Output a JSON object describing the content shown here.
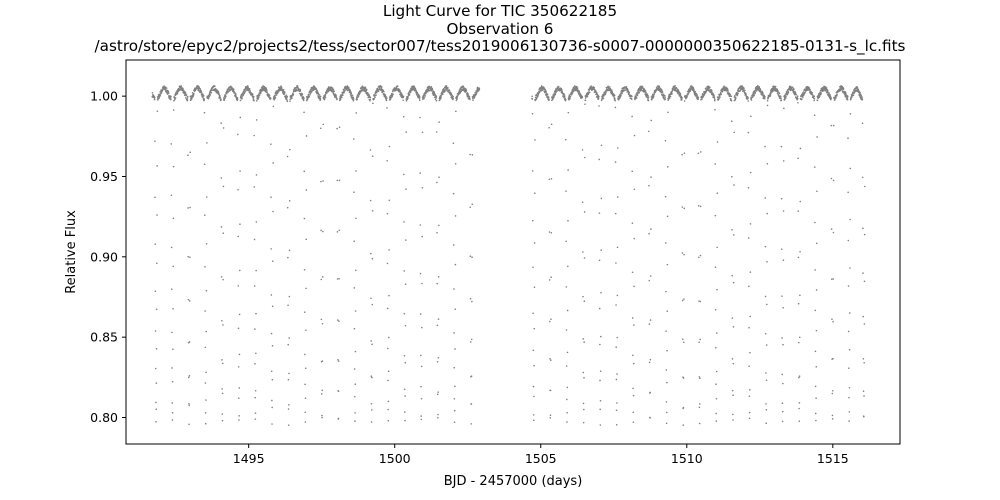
{
  "chart_data": {
    "type": "scatter",
    "title_lines": [
      "Light Curve for TIC 350622185",
      "Observation 6",
      "/astro/store/epyc2/projects2/tess/sector007/tess2019006130736-s0007-0000000350622185-0131-s_lc.fits"
    ],
    "xlabel": "BJD - 2457000 (days)",
    "ylabel": "Relative Flux",
    "xlim": [
      1490.8,
      1517.3
    ],
    "ylim": [
      0.7835,
      1.0225
    ],
    "xticks": [
      1495,
      1500,
      1505,
      1510,
      1515
    ],
    "xtick_labels": [
      "1495",
      "1500",
      "1505",
      "1510",
      "1515"
    ],
    "yticks": [
      0.8,
      0.85,
      0.9,
      0.95,
      1.0
    ],
    "ytick_labels": [
      "0.80",
      "0.85",
      "0.90",
      "0.95",
      "1.00"
    ],
    "grid": false,
    "marker_color": "#808080",
    "segments": [
      {
        "t_start": 1491.7,
        "t_end": 1502.9
      },
      {
        "t_start": 1504.7,
        "t_end": 1516.1
      }
    ],
    "model": {
      "period_days": 0.568,
      "eclipse_times": [
        1491.83,
        1492.39,
        1492.96,
        1493.53,
        1494.1,
        1494.67,
        1495.23,
        1495.8,
        1496.37,
        1496.94,
        1497.51,
        1498.07,
        1498.64,
        1499.21,
        1499.78,
        1500.35,
        1500.91,
        1501.48,
        1502.05,
        1502.62,
        1504.76,
        1505.33,
        1505.9,
        1506.47,
        1507.04,
        1507.6,
        1508.17,
        1508.74,
        1509.31,
        1509.88,
        1510.44,
        1511.01,
        1511.58,
        1512.15,
        1512.72,
        1513.28,
        1513.85,
        1514.42,
        1514.99,
        1515.56,
        1516.06
      ],
      "baseline_flux": 1.0,
      "hump_amplitude": 0.007,
      "min_flux": 0.796,
      "cadence_days": 0.0014
    }
  },
  "axes_color": "#000000"
}
